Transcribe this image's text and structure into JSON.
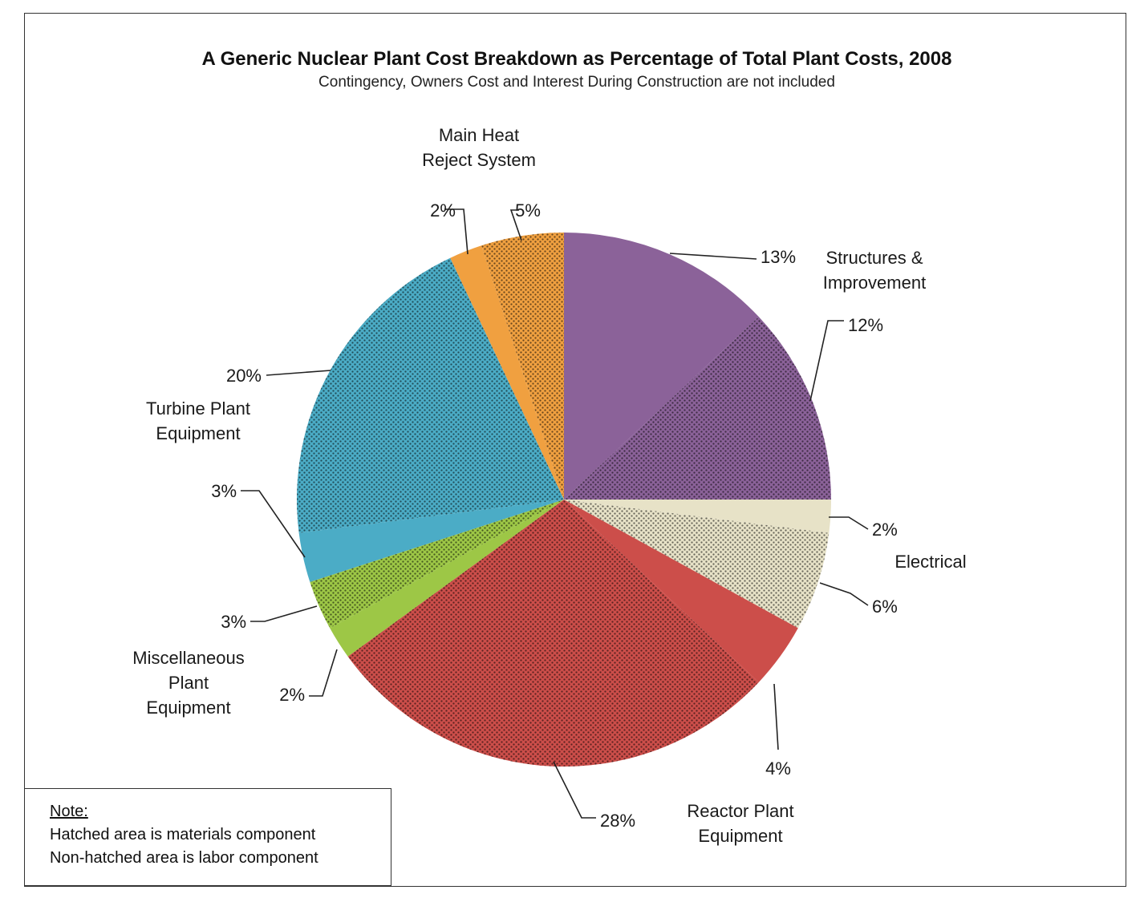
{
  "chart_data": {
    "type": "pie",
    "title": "A Generic Nuclear Plant Cost Breakdown as Percentage of Total Plant Costs, 2008",
    "subtitle": "Contingency, Owners Cost and Interest During Construction are not included",
    "start": "12 o'clock, clockwise",
    "slices": [
      {
        "value": 13,
        "label": "13%",
        "color": "#8B6299",
        "hatched": false
      },
      {
        "value": 12,
        "label": "12%",
        "color": "#8B6299",
        "hatched": true
      },
      {
        "value": 2,
        "label": "2%",
        "color": "#E7E2C7",
        "hatched": false
      },
      {
        "value": 6,
        "label": "6%",
        "color": "#E7E2C7",
        "hatched": true
      },
      {
        "value": 4,
        "label": "4%",
        "color": "#CC4E4A",
        "hatched": false
      },
      {
        "value": 28,
        "label": "28%",
        "color": "#CC4E4A",
        "hatched": true
      },
      {
        "value": 2,
        "label": "2%",
        "color": "#9DC746",
        "hatched": false
      },
      {
        "value": 3,
        "label": "3%",
        "color": "#9DC746",
        "hatched": true
      },
      {
        "value": 3,
        "label": "3%",
        "color": "#4BACC6",
        "hatched": false
      },
      {
        "value": 20,
        "label": "20%",
        "color": "#4BACC6",
        "hatched": true
      },
      {
        "value": 2,
        "label": "2%",
        "color": "#F0A040",
        "hatched": false
      },
      {
        "value": 5,
        "label": "5%",
        "color": "#F0A040",
        "hatched": true
      }
    ],
    "categories": [
      {
        "name": [
          "Structures &",
          "Improvement"
        ]
      },
      {
        "name": [
          "Electrical"
        ]
      },
      {
        "name": [
          "Reactor Plant",
          "Equipment"
        ]
      },
      {
        "name": [
          "Miscellaneous",
          "Plant",
          "Equipment"
        ]
      },
      {
        "name": [
          "Turbine Plant",
          "Equipment"
        ]
      },
      {
        "name": [
          "Main Heat",
          "Reject System"
        ]
      }
    ]
  },
  "note": {
    "heading": "Note:",
    "line1": "Hatched area is materials component",
    "line2": "Non-hatched area is labor component"
  }
}
